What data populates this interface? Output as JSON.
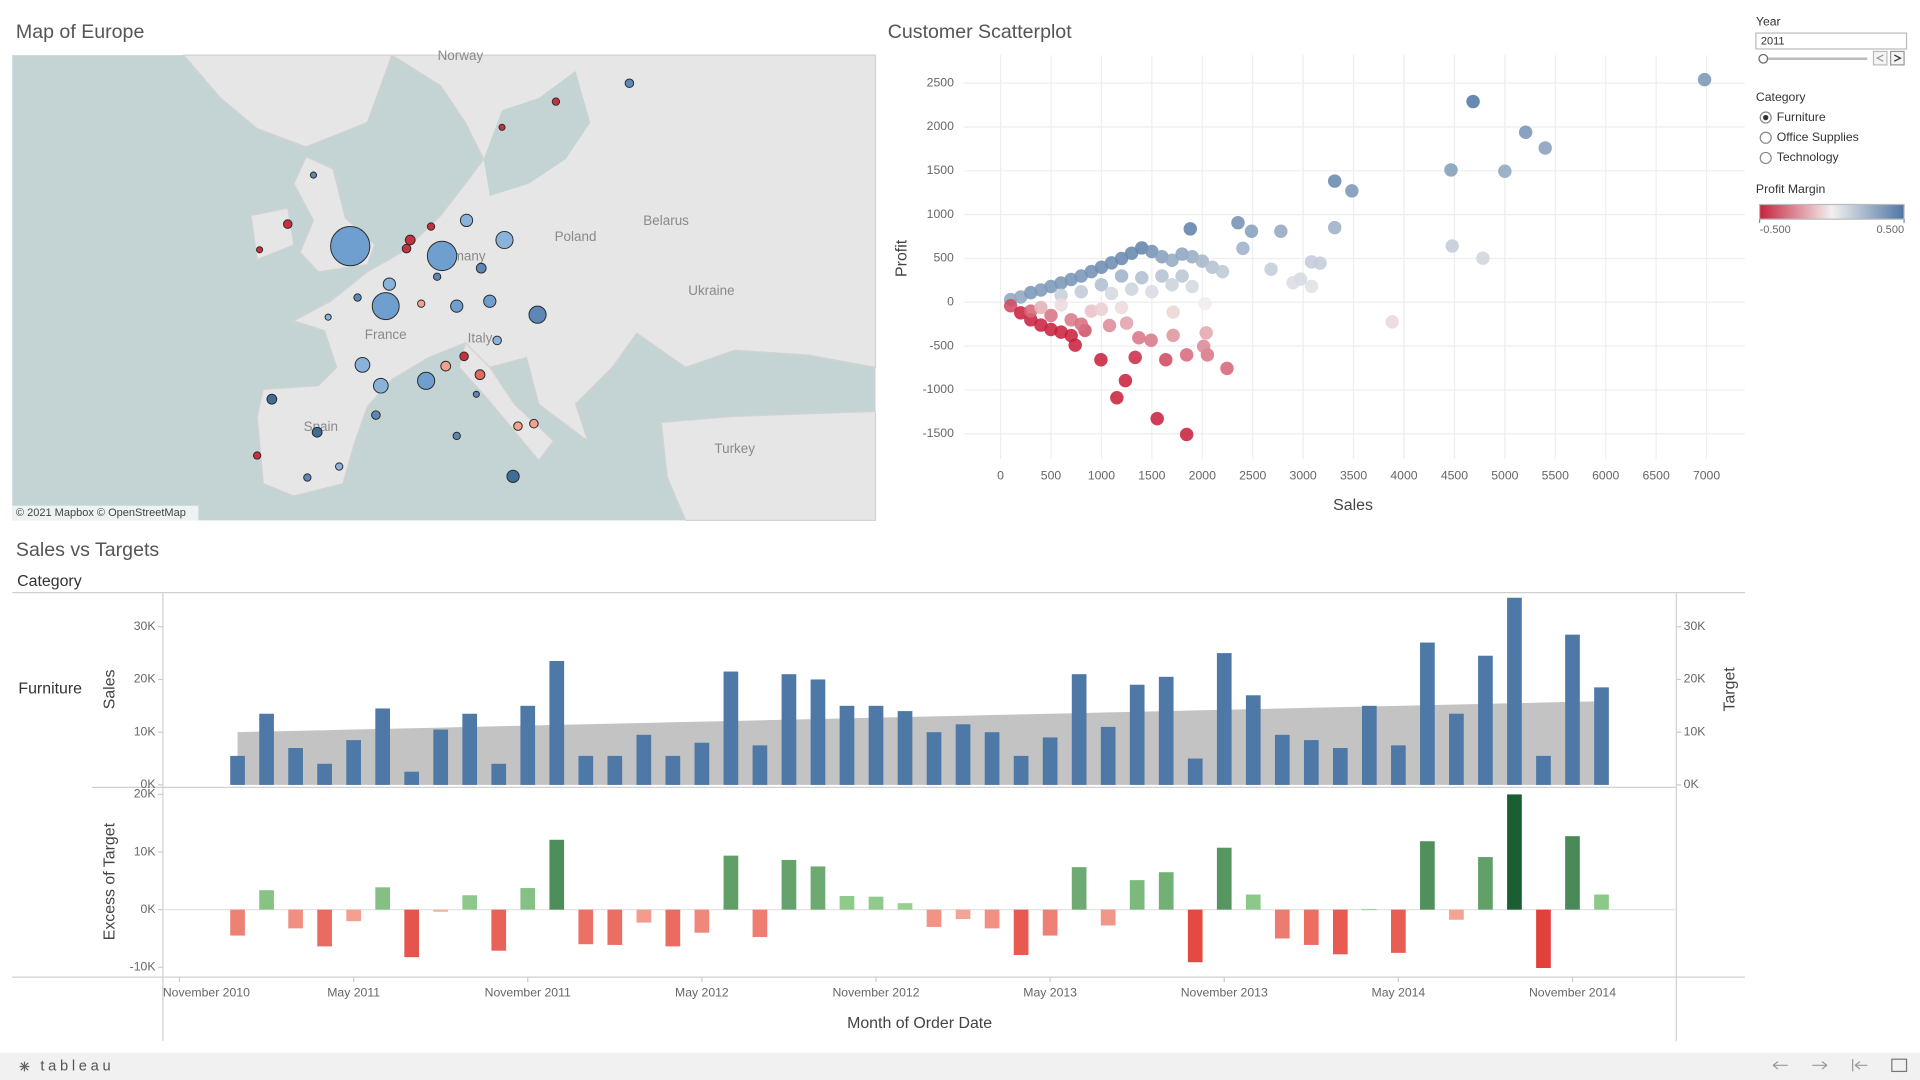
{
  "map": {
    "title": "Map of Europe",
    "labels": [
      "Norway",
      "Poland",
      "Belarus",
      "Ukraine",
      "Germany",
      "France",
      "Italy",
      "Spain",
      "Turkey"
    ],
    "attribution": "© 2021 Mapbox © OpenStreetMap"
  },
  "filters": {
    "year_label": "Year",
    "year": "2011",
    "category_label": "Category",
    "categories": [
      "Furniture",
      "Office Supplies",
      "Technology"
    ],
    "selected": 0
  },
  "footer": {
    "logo": "tableau"
  },
  "chart_data": [
    {
      "type": "scatter",
      "title": "Customer Scatterplot",
      "xlabel": "Sales",
      "ylabel": "Profit",
      "xlim": [
        -730,
        7380
      ],
      "ylim": [
        -1790,
        2820
      ],
      "xticks": [
        0,
        500,
        1000,
        1500,
        2000,
        2500,
        3000,
        3500,
        4000,
        4500,
        5000,
        5500,
        6000,
        6500,
        7000
      ],
      "yticks": [
        -1500,
        -1000,
        -500,
        0,
        500,
        1000,
        1500,
        2000,
        2500
      ],
      "grid": true,
      "legend": {
        "title": "Profit Margin",
        "ticks": [
          {
            "value": -0.5,
            "label": "-0.500"
          },
          {
            "value": 0.5,
            "label": "0.500"
          }
        ],
        "colors": [
          "#c8223f",
          "#f2f0ee",
          "#4f76a3"
        ]
      },
      "x": [
        6980,
        4685,
        5206,
        5400,
        4466,
        5000,
        3313,
        3483,
        3313,
        4478,
        4782,
        3883,
        3083,
        3168,
        3083,
        2973,
        2900,
        2682,
        2779,
        2488,
        2354,
        2403,
        1881,
        1845,
        1553,
        1153,
        1238,
        995,
        1335,
        1638,
        1845,
        2051,
        2245,
        2014,
        2039,
        1711,
        1493,
        1371,
        740,
        837,
        1080,
        1250,
        1711,
        2027,
        100,
        200,
        300,
        400,
        500,
        600,
        700,
        800,
        900,
        1000,
        1100,
        1200,
        1300,
        1400,
        1500,
        1600,
        1700,
        1800,
        1900,
        2000,
        1200,
        1400,
        1600,
        1800,
        2100,
        1000,
        1300,
        1500,
        1700,
        2200,
        800,
        600,
        1100,
        1900,
        100,
        200,
        300,
        400,
        500,
        600,
        700,
        300,
        500,
        700,
        800,
        900,
        1000,
        1200,
        400,
        600
      ],
      "values": [
        2540,
        2290,
        1940,
        1760,
        1510,
        1495,
        1383,
        1271,
        852,
        642,
        503,
        -223,
        461,
        447,
        182,
        265,
        223,
        377,
        810,
        810,
        908,
        615,
        838,
        -1508,
        -1327,
        -1089,
        -894,
        -656,
        -628,
        -656,
        -600,
        -600,
        -754,
        -503,
        -349,
        -377,
        -433,
        -405,
        -489,
        -321,
        -265,
        -237,
        -112,
        -14,
        30,
        60,
        110,
        140,
        180,
        220,
        260,
        300,
        350,
        400,
        450,
        500,
        560,
        620,
        580,
        520,
        480,
        550,
        520,
        470,
        300,
        280,
        300,
        300,
        400,
        200,
        150,
        120,
        200,
        350,
        120,
        80,
        100,
        180,
        -40,
        -120,
        -200,
        -260,
        -310,
        -340,
        -380,
        -100,
        -150,
        -200,
        -250,
        -100,
        -80,
        -60,
        -60,
        -30
      ]
    },
    {
      "type": "bar",
      "title": "Sales vs Targets",
      "facet_header": "Category",
      "row_label": "Furniture",
      "xlabel": "Month of Order Date",
      "ylabel": "Sales",
      "y2label": "Target",
      "x": [
        "2011-01",
        "2011-02",
        "2011-03",
        "2011-04",
        "2011-05",
        "2011-06",
        "2011-07",
        "2011-08",
        "2011-09",
        "2011-10",
        "2011-11",
        "2011-12",
        "2012-01",
        "2012-02",
        "2012-03",
        "2012-04",
        "2012-05",
        "2012-06",
        "2012-07",
        "2012-08",
        "2012-09",
        "2012-10",
        "2012-11",
        "2012-12",
        "2013-01",
        "2013-02",
        "2013-03",
        "2013-04",
        "2013-05",
        "2013-06",
        "2013-07",
        "2013-08",
        "2013-09",
        "2013-10",
        "2013-11",
        "2013-12",
        "2014-01",
        "2014-02",
        "2014-03",
        "2014-04",
        "2014-05",
        "2014-06",
        "2014-07",
        "2014-08",
        "2014-09",
        "2014-10",
        "2014-11",
        "2014-12"
      ],
      "xticks": [
        {
          "value": "2010-11",
          "label": "November 2010"
        },
        {
          "value": "2011-05",
          "label": "May 2011"
        },
        {
          "value": "2011-11",
          "label": "November 2011"
        },
        {
          "value": "2012-05",
          "label": "May 2012"
        },
        {
          "value": "2012-11",
          "label": "November 2012"
        },
        {
          "value": "2013-05",
          "label": "May 2013"
        },
        {
          "value": "2013-11",
          "label": "November 2013"
        },
        {
          "value": "2014-05",
          "label": "May 2014"
        },
        {
          "value": "2014-11",
          "label": "November 2014"
        }
      ],
      "ylim": [
        0,
        36000
      ],
      "yticks": [
        {
          "value": 0,
          "label": "0K"
        },
        {
          "value": 10000,
          "label": "10K"
        },
        {
          "value": 20000,
          "label": "20K"
        },
        {
          "value": 30000,
          "label": "30K"
        }
      ],
      "y2lim": [
        0,
        36000
      ],
      "y2ticks": [
        {
          "value": 0,
          "label": "0K"
        },
        {
          "value": 10000,
          "label": "10K"
        },
        {
          "value": 20000,
          "label": "20K"
        },
        {
          "value": 30000,
          "label": "30K"
        }
      ],
      "series": [
        {
          "color": "#4e79a7",
          "values": [
            5500,
            13500,
            7000,
            4000,
            8500,
            14500,
            2500,
            10500,
            13500,
            4000,
            15000,
            23500,
            5500,
            5500,
            9500,
            5500,
            8000,
            21500,
            7500,
            21000,
            20000,
            15000,
            15000,
            14000,
            10000,
            11500,
            10000,
            5500,
            9000,
            21000,
            11000,
            19000,
            20500,
            5000,
            25000,
            17000,
            9500,
            8500,
            7000,
            15000,
            7500,
            27000,
            13500,
            24500,
            35500,
            5500,
            28500,
            18500
          ]
        },
        {
          "type": "area",
          "axis": "y2",
          "color": "#bdbdbd",
          "values": [
            10000,
            10125,
            10250,
            10375,
            10500,
            10625,
            10750,
            10875,
            11000,
            11125,
            11250,
            11375,
            11500,
            11625,
            11750,
            11875,
            12000,
            12125,
            12250,
            12375,
            12500,
            12625,
            12750,
            12875,
            13000,
            13125,
            13250,
            13375,
            13500,
            13625,
            13750,
            13875,
            14000,
            14125,
            14250,
            14375,
            14500,
            14625,
            14750,
            14875,
            15000,
            15125,
            15250,
            15375,
            15500,
            15625,
            15750,
            15875
          ]
        }
      ]
    },
    {
      "type": "bar",
      "ylabel": "Excess of Target",
      "x": [
        "2011-01",
        "2011-02",
        "2011-03",
        "2011-04",
        "2011-05",
        "2011-06",
        "2011-07",
        "2011-08",
        "2011-09",
        "2011-10",
        "2011-11",
        "2011-12",
        "2012-01",
        "2012-02",
        "2012-03",
        "2012-04",
        "2012-05",
        "2012-06",
        "2012-07",
        "2012-08",
        "2012-09",
        "2012-10",
        "2012-11",
        "2012-12",
        "2013-01",
        "2013-02",
        "2013-03",
        "2013-04",
        "2013-05",
        "2013-06",
        "2013-07",
        "2013-08",
        "2013-09",
        "2013-10",
        "2013-11",
        "2013-12",
        "2014-01",
        "2014-02",
        "2014-03",
        "2014-04",
        "2014-05",
        "2014-06",
        "2014-07",
        "2014-08",
        "2014-09",
        "2014-10",
        "2014-11",
        "2014-12"
      ],
      "ylim": [
        -11500,
        20800
      ],
      "yticks": [
        {
          "value": -10000,
          "label": "-10K"
        },
        {
          "value": 0,
          "label": "0K"
        },
        {
          "value": 10000,
          "label": "10K"
        },
        {
          "value": 20000,
          "label": "20K"
        }
      ],
      "negative_colors": [
        "#f8b7a5",
        "#e2403a"
      ],
      "positive_colors": [
        "#9dd896",
        "#1b5e34"
      ],
      "values": [
        -4500,
        3375,
        -3250,
        -6375,
        -2000,
        3875,
        -8250,
        -375,
        2500,
        -7125,
        3750,
        12125,
        -6000,
        -6125,
        -2250,
        -6375,
        -4000,
        9375,
        -4750,
        8625,
        7500,
        2375,
        2250,
        1125,
        -3000,
        -1625,
        -3250,
        -7875,
        -4500,
        7375,
        -2750,
        5125,
        6500,
        -9125,
        10750,
        2625,
        -5000,
        -6125,
        -7750,
        125,
        -7500,
        11875,
        -1750,
        9125,
        20000,
        -10125,
        12750,
        2625
      ]
    }
  ]
}
